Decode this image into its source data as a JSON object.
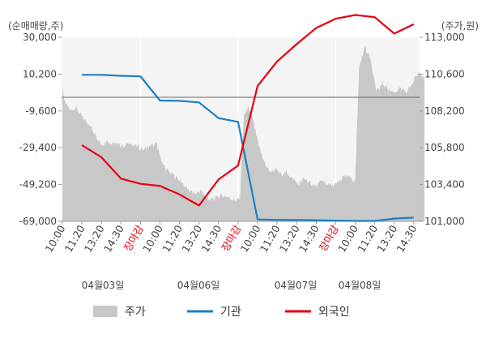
{
  "chart_data": {
    "type": "line",
    "left_axis_unit": "(순매매량,주)",
    "right_axis_unit": "(주가,원)",
    "left_ticks": [
      "30,000",
      "10,200",
      "-9,600",
      "-29,400",
      "-49,200",
      "-69,000"
    ],
    "left_tick_values": [
      30000,
      10200,
      -9600,
      -29400,
      -49200,
      -69000
    ],
    "left_ylim": [
      -69000,
      30000
    ],
    "right_ticks": [
      "113,000",
      "110,600",
      "108,200",
      "105,800",
      "103,400",
      "101,000"
    ],
    "right_tick_values": [
      113000,
      110600,
      108200,
      105800,
      103400,
      101000
    ],
    "right_ylim": [
      101000,
      113000
    ],
    "x_ticks": [
      {
        "label": "10:00",
        "highlight": false
      },
      {
        "label": "11:20",
        "highlight": false
      },
      {
        "label": "13:20",
        "highlight": false
      },
      {
        "label": "14:30",
        "highlight": false
      },
      {
        "label": "장마감",
        "highlight": true
      },
      {
        "label": "10:00",
        "highlight": false
      },
      {
        "label": "11:20",
        "highlight": false
      },
      {
        "label": "13:20",
        "highlight": false
      },
      {
        "label": "14:30",
        "highlight": false
      },
      {
        "label": "장마감",
        "highlight": true
      },
      {
        "label": "10:00",
        "highlight": false
      },
      {
        "label": "11:20",
        "highlight": false
      },
      {
        "label": "13:20",
        "highlight": false
      },
      {
        "label": "14:30",
        "highlight": false
      },
      {
        "label": "장마감",
        "highlight": true
      },
      {
        "label": "10:00",
        "highlight": false
      },
      {
        "label": "11:20",
        "highlight": false
      },
      {
        "label": "13:20",
        "highlight": false
      },
      {
        "label": "14:30",
        "highlight": false
      }
    ],
    "dates": [
      "04월03일",
      "04월06일",
      "04월07일",
      "04월08일"
    ],
    "legend": [
      "주가",
      "기관",
      "외국인"
    ],
    "colors": {
      "price": "#c8c8c8",
      "institution": "#1a7fc8",
      "foreign": "#e60012",
      "highlight": "#e60012"
    },
    "series": [
      {
        "name": "기관",
        "axis": "left",
        "x": [
          1,
          2,
          3,
          4,
          5,
          6,
          7,
          8,
          9,
          10,
          11,
          12,
          13,
          14,
          15,
          16,
          17,
          18
        ],
        "values": [
          9800,
          9800,
          9300,
          9000,
          -4000,
          -4200,
          -5000,
          -13500,
          -15500,
          -68000,
          -68200,
          -68300,
          -68400,
          -68600,
          -68800,
          -68800,
          -67500,
          -67000
        ]
      },
      {
        "name": "외국인",
        "axis": "left",
        "x": [
          1,
          2,
          3,
          4,
          5,
          6,
          7,
          8,
          9,
          10,
          11,
          12,
          13,
          14,
          15,
          16,
          17,
          18
        ],
        "values": [
          -28000,
          -34500,
          -46000,
          -48800,
          -50000,
          -54500,
          -60500,
          -46500,
          -39000,
          3800,
          17000,
          26300,
          35000,
          40000,
          42000,
          40800,
          32000,
          37000
        ]
      }
    ],
    "price_area": {
      "name": "주가",
      "axis": "right",
      "x_range": [
        0,
        18.55
      ],
      "anchors": [
        [
          0.0,
          109.8
        ],
        [
          0.1,
          108.8
        ],
        [
          0.4,
          108.2
        ],
        [
          0.7,
          108.4
        ],
        [
          1.0,
          107.8
        ],
        [
          1.3,
          107.4
        ],
        [
          1.6,
          106.9
        ],
        [
          2.0,
          106.0
        ],
        [
          2.3,
          106.2
        ],
        [
          2.7,
          106.1
        ],
        [
          3.0,
          105.9
        ],
        [
          3.5,
          106.1
        ],
        [
          3.8,
          105.9
        ],
        [
          4.2,
          105.7
        ],
        [
          4.5,
          105.9
        ],
        [
          4.85,
          106.0
        ],
        [
          5.0,
          105.2
        ],
        [
          5.3,
          104.4
        ],
        [
          5.6,
          104.1
        ],
        [
          5.9,
          103.8
        ],
        [
          6.2,
          103.4
        ],
        [
          6.5,
          103.0
        ],
        [
          6.8,
          102.8
        ],
        [
          7.1,
          103.0
        ],
        [
          7.4,
          102.5
        ],
        [
          7.7,
          102.4
        ],
        [
          8.0,
          102.6
        ],
        [
          8.3,
          102.7
        ],
        [
          8.6,
          102.5
        ],
        [
          8.9,
          102.3
        ],
        [
          9.1,
          102.6
        ],
        [
          9.3,
          107.9
        ],
        [
          9.5,
          108.4
        ],
        [
          9.7,
          108.0
        ],
        [
          10.0,
          106.2
        ],
        [
          10.3,
          105.0
        ],
        [
          10.6,
          104.2
        ],
        [
          10.9,
          104.4
        ],
        [
          11.2,
          104.1
        ],
        [
          11.5,
          104.2
        ],
        [
          11.8,
          103.8
        ],
        [
          12.1,
          103.4
        ],
        [
          12.4,
          103.8
        ],
        [
          12.7,
          103.5
        ],
        [
          13.0,
          103.3
        ],
        [
          13.3,
          103.6
        ],
        [
          13.6,
          103.4
        ],
        [
          13.9,
          103.3
        ],
        [
          14.2,
          103.6
        ],
        [
          14.5,
          104.0
        ],
        [
          14.8,
          103.8
        ],
        [
          15.0,
          103.5
        ],
        [
          15.2,
          111.0
        ],
        [
          15.5,
          112.4
        ],
        [
          15.8,
          111.5
        ],
        [
          16.1,
          109.4
        ],
        [
          16.4,
          110.0
        ],
        [
          16.7,
          109.6
        ],
        [
          17.0,
          109.4
        ],
        [
          17.3,
          109.7
        ],
        [
          17.6,
          109.3
        ],
        [
          18.0,
          110.2
        ],
        [
          18.3,
          110.8
        ],
        [
          18.55,
          110.3
        ]
      ]
    }
  }
}
